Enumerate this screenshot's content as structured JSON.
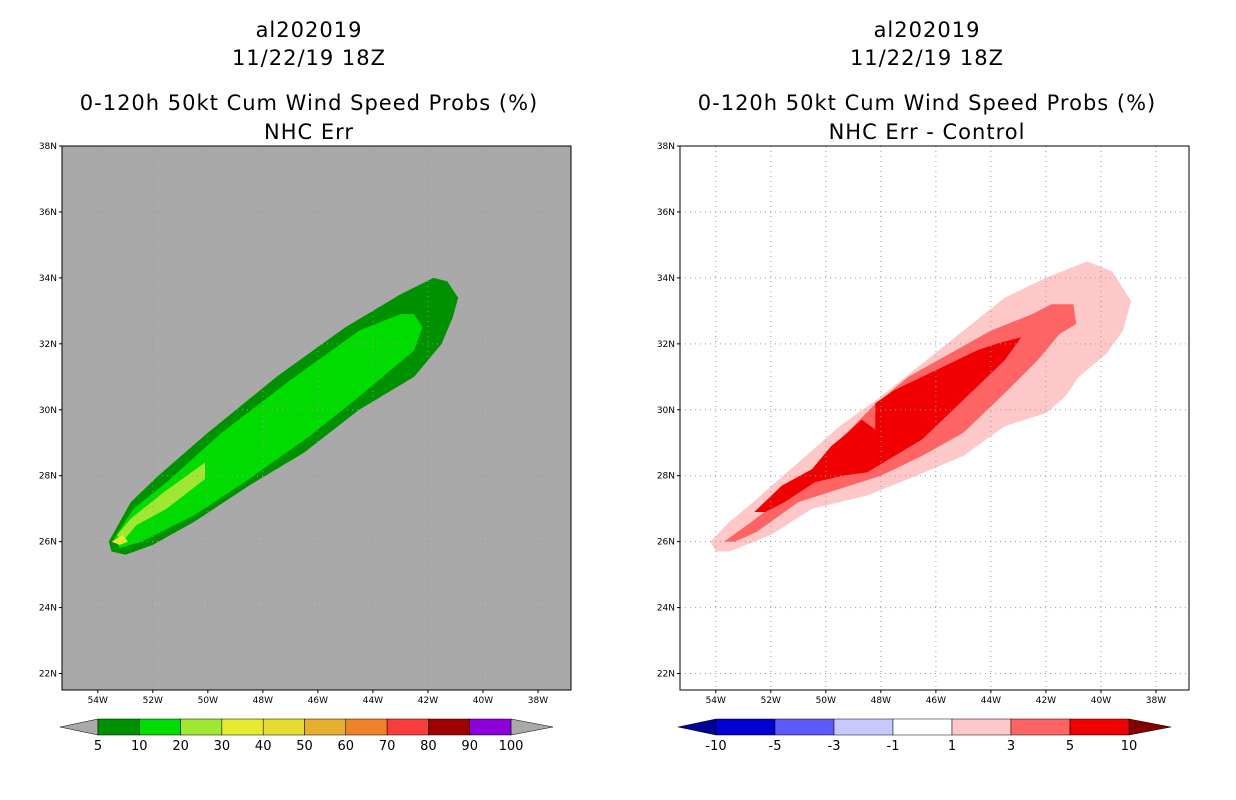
{
  "panels": [
    {
      "storm_id": "al202019",
      "datetime": "11/22/19 18Z",
      "product": "0-120h 50kt Cum Wind Speed Probs (%)",
      "subtitle": "NHC Err",
      "colorbar": {
        "labels": [
          "5",
          "10",
          "20",
          "30",
          "40",
          "50",
          "60",
          "70",
          "80",
          "90",
          "100"
        ],
        "colors": [
          "#009100",
          "#00dc00",
          "#a0e632",
          "#e6eb32",
          "#e6dc32",
          "#e6af2d",
          "#f08228",
          "#fa3c3c",
          "#a00000",
          "#8c00dc"
        ],
        "under_color": "#a9a9a9",
        "over_color": "#a9a9a9"
      }
    },
    {
      "storm_id": "al202019",
      "datetime": "11/22/19 18Z",
      "product": "0-120h 50kt Cum Wind Speed Probs (%)",
      "subtitle": "NHC Err - Control",
      "colorbar": {
        "labels": [
          "-10",
          "-5",
          "-3",
          "-1",
          "1",
          "3",
          "5",
          "10"
        ],
        "colors": [
          "#0000d2",
          "#5a5aff",
          "#c8c8ff",
          "#ffffff",
          "#ffc8c8",
          "#ff6464",
          "#f00000"
        ],
        "under_color": "#000096",
        "over_color": "#820000"
      }
    }
  ],
  "map": {
    "lat_labels": [
      "38N",
      "36N",
      "34N",
      "32N",
      "30N",
      "28N",
      "26N",
      "24N",
      "22N"
    ],
    "lon_labels": [
      "54W",
      "52W",
      "50W",
      "48W",
      "46W",
      "44W",
      "42W",
      "40W",
      "38W"
    ],
    "lat_range": [
      21.5,
      38
    ],
    "lon_range": [
      55.3,
      36.8
    ],
    "land_color": "#a9a9a9"
  },
  "chart_data": [
    {
      "type": "contour",
      "title": "0-120h 50kt Cum Wind Speed Probs (%) - NHC Err",
      "x_axis": "longitude (deg W)",
      "y_axis": "latitude (deg N)",
      "levels": [
        5,
        10,
        20,
        30,
        40,
        50,
        60,
        70,
        80,
        90,
        100
      ],
      "contours": [
        {
          "level": 5,
          "polygon": [
            [
              53.6,
              26.0
            ],
            [
              53.2,
              26.6
            ],
            [
              52.8,
              27.2
            ],
            [
              51.8,
              28.0
            ],
            [
              50.0,
              29.3
            ],
            [
              47.5,
              31.0
            ],
            [
              45.0,
              32.5
            ],
            [
              43.0,
              33.5
            ],
            [
              41.8,
              34.0
            ],
            [
              41.3,
              33.9
            ],
            [
              40.9,
              33.4
            ],
            [
              41.1,
              32.8
            ],
            [
              41.5,
              32.0
            ],
            [
              42.5,
              31.0
            ],
            [
              44.5,
              30.0
            ],
            [
              46.5,
              28.7
            ],
            [
              48.5,
              27.7
            ],
            [
              50.5,
              26.6
            ],
            [
              52.0,
              25.9
            ],
            [
              53.0,
              25.6
            ],
            [
              53.5,
              25.7
            ]
          ]
        },
        {
          "level": 10,
          "polygon": [
            [
              53.4,
              26.1
            ],
            [
              52.7,
              27.0
            ],
            [
              51.5,
              27.8
            ],
            [
              49.5,
              29.3
            ],
            [
              47.0,
              30.9
            ],
            [
              44.5,
              32.4
            ],
            [
              43.0,
              32.9
            ],
            [
              42.5,
              32.9
            ],
            [
              42.2,
              32.5
            ],
            [
              42.5,
              31.8
            ],
            [
              44.5,
              30.4
            ],
            [
              46.3,
              29.2
            ],
            [
              48.5,
              27.9
            ],
            [
              50.5,
              26.8
            ],
            [
              52.4,
              26.0
            ],
            [
              53.2,
              25.8
            ]
          ]
        },
        {
          "level": 20,
          "polygon": [
            [
              53.3,
              26.2
            ],
            [
              52.8,
              26.7
            ],
            [
              51.6,
              27.5
            ],
            [
              50.1,
              28.4
            ],
            [
              50.1,
              27.9
            ],
            [
              51.5,
              27.0
            ],
            [
              52.6,
              26.5
            ],
            [
              53.1,
              26.0
            ]
          ]
        },
        {
          "level": 30,
          "polygon": [
            [
              53.5,
              26.0
            ],
            [
              53.1,
              26.2
            ],
            [
              52.9,
              26.0
            ],
            [
              53.2,
              25.9
            ]
          ]
        }
      ]
    },
    {
      "type": "contour",
      "title": "0-120h 50kt Cum Wind Speed Probs (%) - NHC Err - Control",
      "x_axis": "longitude (deg W)",
      "y_axis": "latitude (deg N)",
      "levels": [
        -10,
        -5,
        -3,
        -1,
        1,
        3,
        5,
        10
      ],
      "contours": [
        {
          "level": 1,
          "polygon": [
            [
              54.2,
              26.0
            ],
            [
              53.5,
              26.6
            ],
            [
              52.5,
              27.3
            ],
            [
              51.0,
              28.4
            ],
            [
              49.5,
              29.5
            ],
            [
              48.0,
              30.4
            ],
            [
              46.5,
              31.4
            ],
            [
              45.0,
              32.4
            ],
            [
              43.5,
              33.4
            ],
            [
              42.0,
              34.0
            ],
            [
              40.5,
              34.5
            ],
            [
              39.6,
              34.2
            ],
            [
              38.9,
              33.3
            ],
            [
              39.2,
              32.4
            ],
            [
              39.8,
              31.7
            ],
            [
              40.8,
              31.0
            ],
            [
              41.3,
              30.4
            ],
            [
              42.0,
              29.9
            ],
            [
              43.5,
              29.5
            ],
            [
              45.0,
              28.6
            ],
            [
              46.7,
              28.0
            ],
            [
              48.5,
              27.4
            ],
            [
              50.5,
              27.0
            ],
            [
              52.0,
              26.2
            ],
            [
              53.5,
              25.7
            ],
            [
              54.0,
              25.7
            ]
          ]
        },
        {
          "level": 3,
          "polygon": [
            [
              53.7,
              26.0
            ],
            [
              52.7,
              26.6
            ],
            [
              51.0,
              27.7
            ],
            [
              50.0,
              28.7
            ],
            [
              49.0,
              29.5
            ],
            [
              48.3,
              30.1
            ],
            [
              47.0,
              31.0
            ],
            [
              45.5,
              31.7
            ],
            [
              44.0,
              32.4
            ],
            [
              42.5,
              32.9
            ],
            [
              41.8,
              33.2
            ],
            [
              41.0,
              33.2
            ],
            [
              40.9,
              32.6
            ],
            [
              41.5,
              32.3
            ],
            [
              42.3,
              31.5
            ],
            [
              43.5,
              30.5
            ],
            [
              45.0,
              29.3
            ],
            [
              46.5,
              28.6
            ],
            [
              48.0,
              28.0
            ],
            [
              49.5,
              27.6
            ],
            [
              51.0,
              27.2
            ],
            [
              52.5,
              26.3
            ],
            [
              53.3,
              26.0
            ]
          ]
        },
        {
          "level": 5,
          "polygon": [
            [
              52.6,
              26.9
            ],
            [
              51.6,
              27.7
            ],
            [
              50.5,
              28.2
            ],
            [
              49.8,
              28.9
            ],
            [
              49.2,
              29.3
            ],
            [
              48.7,
              29.7
            ],
            [
              48.2,
              29.4
            ],
            [
              48.2,
              30.2
            ],
            [
              47.5,
              30.6
            ],
            [
              46.0,
              31.2
            ],
            [
              44.5,
              31.8
            ],
            [
              43.8,
              32.0
            ],
            [
              42.9,
              32.2
            ],
            [
              43.5,
              31.5
            ],
            [
              44.5,
              30.7
            ],
            [
              45.5,
              29.9
            ],
            [
              46.5,
              29.1
            ],
            [
              47.5,
              28.6
            ],
            [
              48.5,
              28.1
            ],
            [
              49.4,
              28.0
            ],
            [
              50.4,
              27.8
            ],
            [
              51.5,
              27.2
            ],
            [
              52.2,
              26.9
            ]
          ]
        }
      ]
    }
  ]
}
